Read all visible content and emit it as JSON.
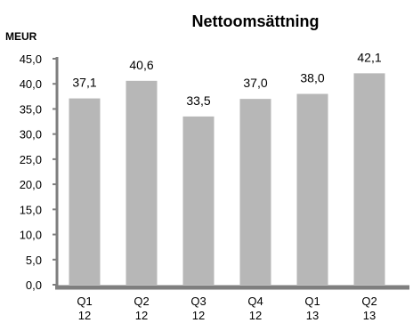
{
  "chart_data": {
    "type": "bar",
    "title": "Nettoomsättning",
    "ylabel": "MEUR",
    "xlabel": "",
    "categories": [
      {
        "top": "Q1",
        "bottom": "12"
      },
      {
        "top": "Q2",
        "bottom": "12"
      },
      {
        "top": "Q3",
        "bottom": "12"
      },
      {
        "top": "Q4",
        "bottom": "12"
      },
      {
        "top": "Q1",
        "bottom": "13"
      },
      {
        "top": "Q2",
        "bottom": "13"
      }
    ],
    "values": [
      37.1,
      40.6,
      33.5,
      37.0,
      38.0,
      42.1
    ],
    "value_labels": [
      "37,1",
      "40,6",
      "33,5",
      "37,0",
      "38,0",
      "42,1"
    ],
    "yticks": [
      "0,0",
      "5,0",
      "10,0",
      "15,0",
      "20,0",
      "25,0",
      "30,0",
      "35,0",
      "40,0",
      "45,0"
    ],
    "ylim": [
      0,
      45
    ],
    "grid": false,
    "legend": "none",
    "colors": {
      "bar": "#b7b7b7",
      "axis": "#7f7f7f"
    }
  }
}
